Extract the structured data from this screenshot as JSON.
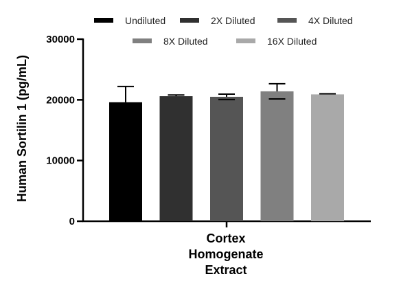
{
  "chart_data": {
    "type": "bar",
    "ylabel": "Human Sortilin 1 (pg/mL)",
    "category_label": [
      "Cortex",
      "Homogenate",
      "Extract"
    ],
    "ylim": [
      0,
      30000
    ],
    "yticks": [
      0,
      10000,
      20000,
      30000
    ],
    "ytick_labels": [
      "0",
      "10000",
      "20000",
      "30000"
    ],
    "legend_position": "top",
    "series": [
      {
        "name": "Undiluted",
        "value": 19600,
        "error": 2600,
        "color": "#000000"
      },
      {
        "name": "2X Diluted",
        "value": 20600,
        "error": 200,
        "color": "#303030"
      },
      {
        "name": "4X Diluted",
        "value": 20500,
        "error": 450,
        "color": "#555555"
      },
      {
        "name": "8X Diluted",
        "value": 21400,
        "error": 1250,
        "color": "#808080"
      },
      {
        "name": "16X Diluted",
        "value": 20900,
        "error": 100,
        "color": "#a9a9a9"
      }
    ]
  }
}
